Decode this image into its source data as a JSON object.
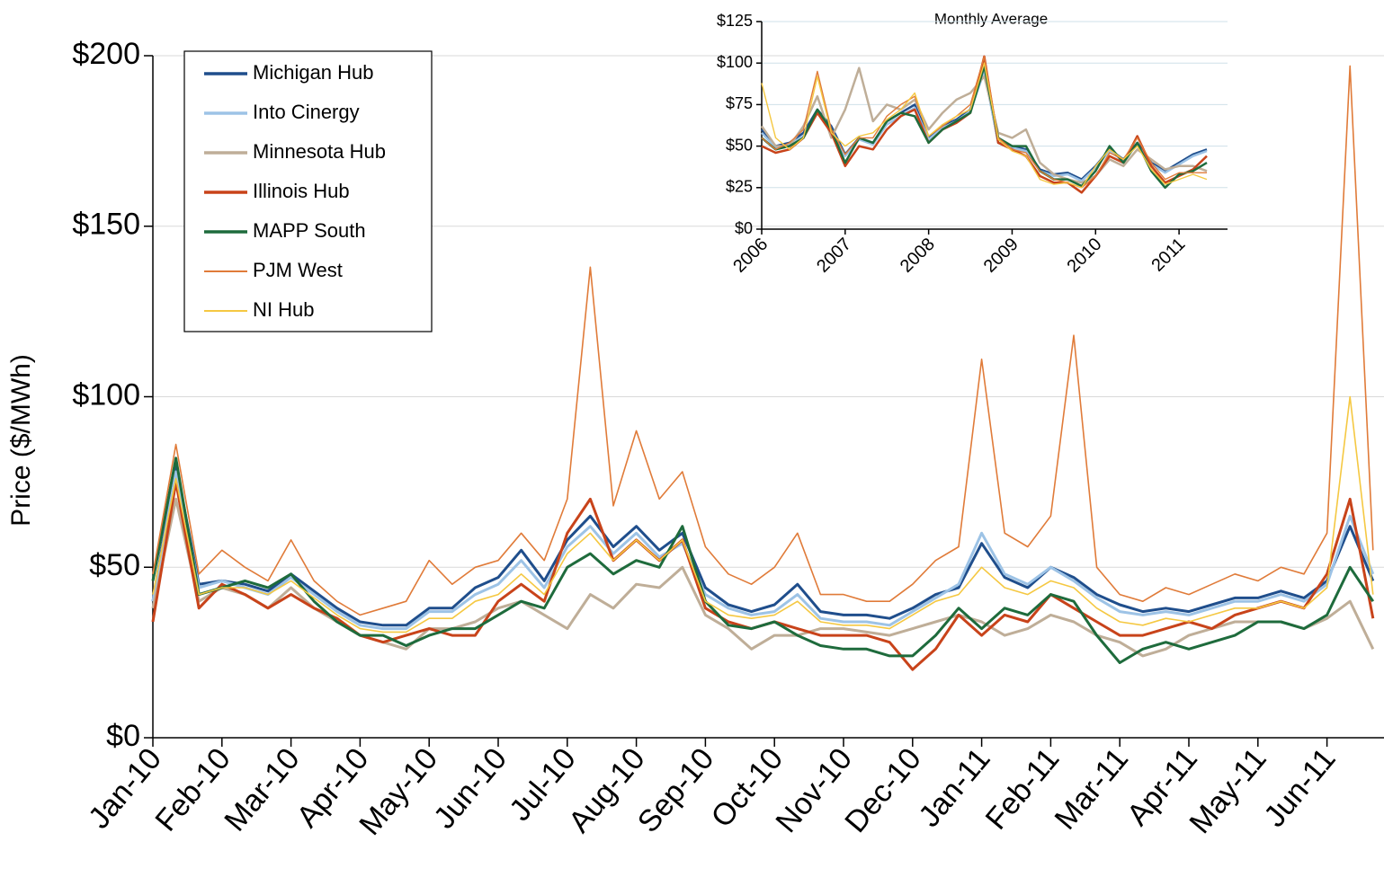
{
  "chart_data": [
    {
      "type": "line",
      "y_label": "Price ($/MWh)",
      "categories": [
        "Jan-10",
        null,
        null,
        "Feb-10",
        null,
        null,
        "Mar-10",
        null,
        null,
        "Apr-10",
        null,
        null,
        "May-10",
        null,
        null,
        "Jun-10",
        null,
        null,
        "Jul-10",
        null,
        null,
        "Aug-10",
        null,
        null,
        "Sep-10",
        null,
        null,
        "Oct-10",
        null,
        null,
        "Nov-10",
        null,
        null,
        "Dec-10",
        null,
        null,
        "Jan-11",
        null,
        null,
        "Feb-11",
        null,
        null,
        "Mar-11",
        null,
        null,
        "Apr-11",
        null,
        null,
        "May-11",
        null,
        null,
        "Jun-11",
        null,
        null
      ],
      "ylim": [
        0,
        200
      ],
      "yticks": [
        {
          "value": 0,
          "label": "$0"
        },
        {
          "value": 50,
          "label": "$50"
        },
        {
          "value": 100,
          "label": "$100"
        },
        {
          "value": 150,
          "label": "$150"
        },
        {
          "value": 200,
          "label": "$200"
        }
      ],
      "grid": true,
      "legend": "upper-left",
      "series": [
        {
          "name": "Michigan Hub",
          "color": "#1f4e8c",
          "values": [
            40,
            80,
            45,
            46,
            45,
            43,
            48,
            43,
            38,
            34,
            33,
            33,
            38,
            38,
            44,
            47,
            55,
            46,
            58,
            65,
            56,
            62,
            55,
            60,
            44,
            39,
            37,
            39,
            45,
            37,
            36,
            36,
            35,
            38,
            42,
            44,
            57,
            47,
            44,
            50,
            47,
            42,
            39,
            37,
            38,
            37,
            39,
            41,
            41,
            43,
            41,
            46,
            62,
            46
          ]
        },
        {
          "name": "Into Cinergy",
          "color": "#9dc3e6",
          "values": [
            40,
            78,
            44,
            46,
            44,
            42,
            47,
            42,
            37,
            33,
            32,
            32,
            37,
            37,
            42,
            45,
            52,
            44,
            56,
            62,
            54,
            60,
            53,
            57,
            42,
            38,
            36,
            37,
            42,
            35,
            34,
            34,
            33,
            37,
            41,
            45,
            60,
            48,
            45,
            50,
            46,
            41,
            37,
            36,
            37,
            36,
            38,
            40,
            40,
            42,
            40,
            45,
            65,
            48
          ]
        },
        {
          "name": "Minnesota Hub",
          "color": "#bfae98",
          "values": [
            38,
            70,
            40,
            44,
            42,
            38,
            44,
            38,
            34,
            30,
            28,
            26,
            32,
            32,
            34,
            38,
            40,
            36,
            32,
            42,
            38,
            45,
            44,
            50,
            36,
            32,
            26,
            30,
            30,
            32,
            32,
            31,
            30,
            32,
            34,
            36,
            34,
            30,
            32,
            36,
            34,
            30,
            28,
            24,
            26,
            30,
            32,
            34,
            34,
            34,
            32,
            35,
            40,
            26
          ]
        },
        {
          "name": "Illinois Hub",
          "color": "#c8431a",
          "values": [
            34,
            75,
            38,
            45,
            42,
            38,
            42,
            38,
            35,
            30,
            28,
            30,
            32,
            30,
            30,
            40,
            45,
            40,
            60,
            70,
            52,
            58,
            52,
            58,
            38,
            34,
            32,
            34,
            32,
            30,
            30,
            30,
            28,
            20,
            26,
            36,
            30,
            36,
            34,
            42,
            38,
            34,
            30,
            30,
            32,
            34,
            32,
            36,
            38,
            40,
            38,
            48,
            70,
            35
          ]
        },
        {
          "name": "MAPP South",
          "color": "#1e6b3c",
          "values": [
            46,
            82,
            42,
            44,
            46,
            44,
            48,
            40,
            34,
            30,
            30,
            27,
            30,
            32,
            32,
            36,
            40,
            38,
            50,
            54,
            48,
            52,
            50,
            62,
            40,
            33,
            32,
            34,
            30,
            27,
            26,
            26,
            24,
            24,
            30,
            38,
            32,
            38,
            36,
            42,
            40,
            30,
            22,
            26,
            28,
            26,
            28,
            30,
            34,
            34,
            32,
            36,
            50,
            40
          ]
        },
        {
          "name": "PJM West",
          "color": "#e07b39",
          "values": [
            48,
            86,
            48,
            55,
            50,
            46,
            58,
            46,
            40,
            36,
            38,
            40,
            52,
            45,
            50,
            52,
            60,
            52,
            70,
            138,
            68,
            90,
            70,
            78,
            56,
            48,
            45,
            50,
            60,
            42,
            42,
            40,
            40,
            45,
            52,
            56,
            111,
            60,
            56,
            65,
            118,
            50,
            42,
            40,
            44,
            42,
            45,
            48,
            46,
            50,
            48,
            60,
            197,
            55
          ]
        },
        {
          "name": "NI Hub",
          "color": "#f5c842",
          "values": [
            42,
            76,
            42,
            44,
            44,
            42,
            46,
            41,
            36,
            32,
            31,
            31,
            35,
            35,
            40,
            42,
            48,
            42,
            54,
            60,
            52,
            58,
            52,
            58,
            40,
            36,
            35,
            36,
            40,
            34,
            33,
            33,
            32,
            36,
            40,
            42,
            50,
            44,
            42,
            46,
            44,
            38,
            34,
            33,
            35,
            34,
            36,
            38,
            38,
            40,
            38,
            44,
            100,
            42
          ]
        }
      ]
    },
    {
      "type": "line",
      "title": "Monthly Average",
      "categories": [
        "2006",
        null,
        null,
        null,
        null,
        null,
        "2007",
        null,
        null,
        null,
        null,
        null,
        "2008",
        null,
        null,
        null,
        null,
        null,
        "2009",
        null,
        null,
        null,
        null,
        null,
        "2010",
        null,
        null,
        null,
        null,
        null,
        "2011",
        null,
        null
      ],
      "ylim": [
        0,
        125
      ],
      "yticks": [
        {
          "value": 0,
          "label": "$0"
        },
        {
          "value": 25,
          "label": "$25"
        },
        {
          "value": 50,
          "label": "$50"
        },
        {
          "value": 75,
          "label": "$75"
        },
        {
          "value": 100,
          "label": "$100"
        },
        {
          "value": 125,
          "label": "$125"
        }
      ],
      "grid": true,
      "series": [
        {
          "name": "Michigan Hub",
          "color": "#1f4e8c",
          "values": [
            60,
            50,
            52,
            58,
            72,
            62,
            45,
            55,
            52,
            65,
            70,
            75,
            55,
            62,
            66,
            72,
            96,
            52,
            50,
            48,
            36,
            33,
            34,
            30,
            38,
            48,
            42,
            52,
            40,
            35,
            40,
            45,
            48
          ]
        },
        {
          "name": "Into Cinergy",
          "color": "#9dc3e6",
          "values": [
            58,
            49,
            51,
            56,
            70,
            60,
            44,
            54,
            51,
            63,
            68,
            73,
            54,
            61,
            65,
            71,
            95,
            52,
            49,
            47,
            35,
            32,
            33,
            29,
            37,
            47,
            41,
            51,
            39,
            34,
            39,
            44,
            47
          ]
        },
        {
          "name": "Minnesota Hub",
          "color": "#bfae98",
          "values": [
            62,
            50,
            50,
            62,
            80,
            55,
            72,
            97,
            65,
            75,
            72,
            78,
            60,
            70,
            78,
            82,
            92,
            58,
            55,
            60,
            40,
            33,
            30,
            28,
            32,
            42,
            38,
            48,
            42,
            36,
            38,
            38,
            35
          ]
        },
        {
          "name": "Illinois Hub",
          "color": "#c8431a",
          "values": [
            50,
            46,
            48,
            55,
            70,
            58,
            38,
            50,
            48,
            60,
            68,
            72,
            52,
            60,
            64,
            70,
            104,
            52,
            48,
            44,
            32,
            28,
            28,
            22,
            32,
            44,
            40,
            56,
            38,
            28,
            32,
            36,
            44
          ]
        },
        {
          "name": "MAPP South",
          "color": "#1e6b3c",
          "values": [
            55,
            48,
            50,
            55,
            72,
            60,
            40,
            55,
            52,
            65,
            70,
            68,
            52,
            60,
            65,
            70,
            98,
            55,
            50,
            50,
            35,
            30,
            30,
            26,
            35,
            50,
            40,
            52,
            35,
            25,
            33,
            35,
            40
          ]
        },
        {
          "name": "PJM West",
          "color": "#e07b39",
          "values": [
            55,
            48,
            52,
            60,
            95,
            60,
            45,
            55,
            55,
            68,
            75,
            80,
            56,
            62,
            68,
            75,
            104,
            55,
            48,
            46,
            35,
            30,
            28,
            25,
            32,
            46,
            42,
            55,
            40,
            30,
            34,
            34,
            34
          ]
        },
        {
          "name": "NI Hub",
          "color": "#f5c842",
          "values": [
            88,
            55,
            48,
            55,
            92,
            58,
            50,
            56,
            58,
            66,
            72,
            82,
            56,
            63,
            68,
            72,
            100,
            54,
            47,
            44,
            30,
            27,
            28,
            25,
            38,
            48,
            42,
            50,
            36,
            27,
            30,
            33,
            30
          ]
        }
      ]
    }
  ]
}
